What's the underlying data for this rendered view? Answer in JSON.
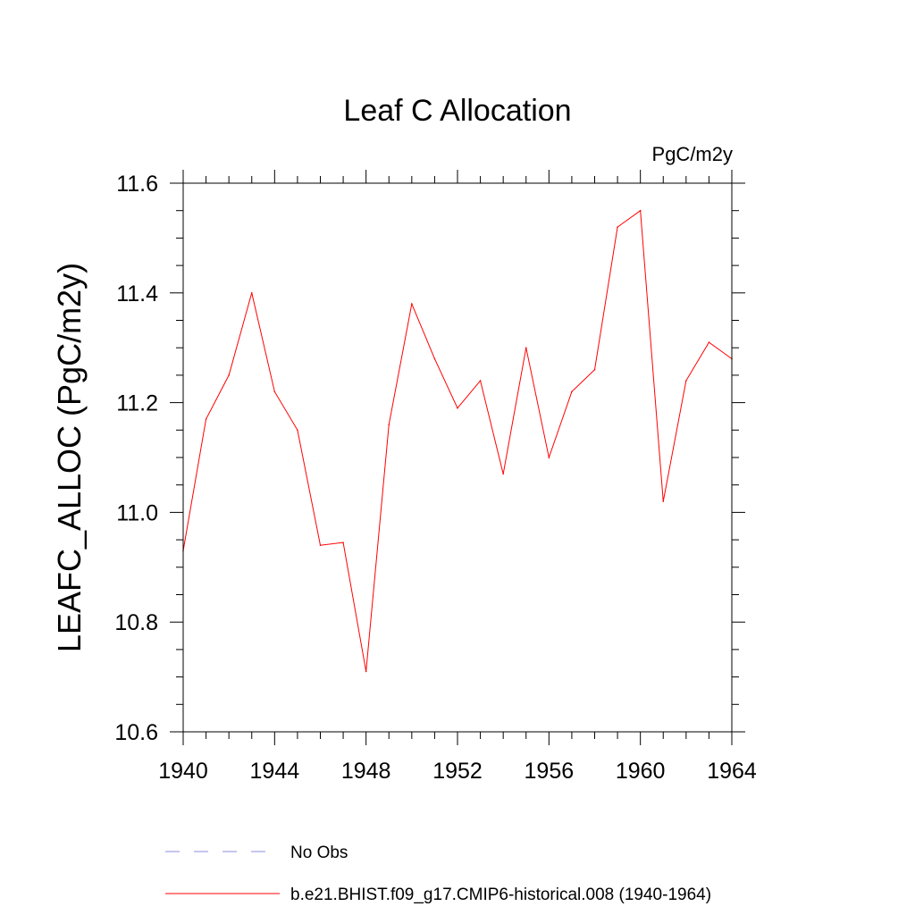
{
  "chart_data": {
    "type": "line",
    "title": "Leaf C Allocation",
    "units": "PgC/m2y",
    "xlabel": "",
    "ylabel": "LEAFC_ALLOC  (PgC/m2y)",
    "xlim": [
      1940,
      1964
    ],
    "ylim": [
      10.6,
      11.6
    ],
    "xticks": [
      1940,
      1944,
      1948,
      1952,
      1956,
      1960,
      1964
    ],
    "yticks": [
      10.6,
      10.8,
      11.0,
      11.2,
      11.4,
      11.6
    ],
    "ytick_labels": [
      "10.6",
      "10.8",
      "11.0",
      "11.2",
      "11.4",
      "11.6"
    ],
    "grid": false,
    "legend_position": "bottom",
    "series": [
      {
        "name": "b.e21.BHIST.f09_g17.CMIP6-historical.008 (1940-1964)",
        "color": "#ff0000",
        "style": "solid",
        "x": [
          1940,
          1941,
          1942,
          1943,
          1944,
          1945,
          1946,
          1947,
          1948,
          1949,
          1950,
          1951,
          1952,
          1953,
          1954,
          1955,
          1956,
          1957,
          1958,
          1959,
          1960,
          1961,
          1962,
          1963,
          1964
        ],
        "values": [
          10.93,
          11.17,
          11.25,
          11.4,
          11.22,
          11.15,
          10.94,
          10.945,
          10.71,
          11.16,
          11.38,
          11.28,
          11.19,
          11.24,
          11.07,
          11.3,
          11.1,
          11.22,
          11.26,
          11.52,
          11.55,
          11.02,
          11.24,
          11.31,
          11.28
        ]
      }
    ],
    "legend": [
      {
        "label": "No Obs",
        "color": "#8c8ce0",
        "style": "dashed"
      },
      {
        "label": "b.e21.BHIST.f09_g17.CMIP6-historical.008 (1940-1964)",
        "color": "#ff0000",
        "style": "solid"
      }
    ]
  }
}
